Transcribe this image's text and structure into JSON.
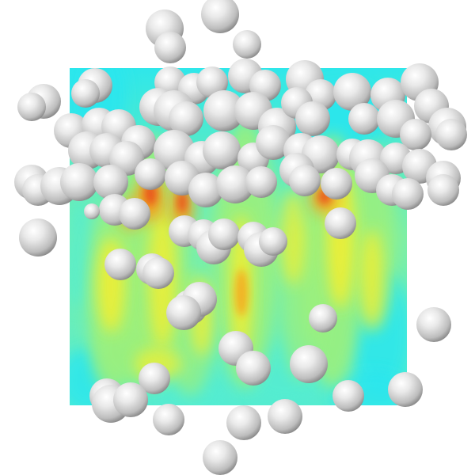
{
  "scene": {
    "background": "#ffffff",
    "field_colors": {
      "cyan": "#29e6ee",
      "aqua": "#52edd3",
      "green": "#9ef07a",
      "yellow": "#f6ef2f",
      "orange": "#f7a11f",
      "red": "#e84f1b"
    },
    "sphere_colors": {
      "highlight": "#ffffff",
      "mid": "#dadada",
      "shadow": "#6f6f6f"
    }
  }
}
